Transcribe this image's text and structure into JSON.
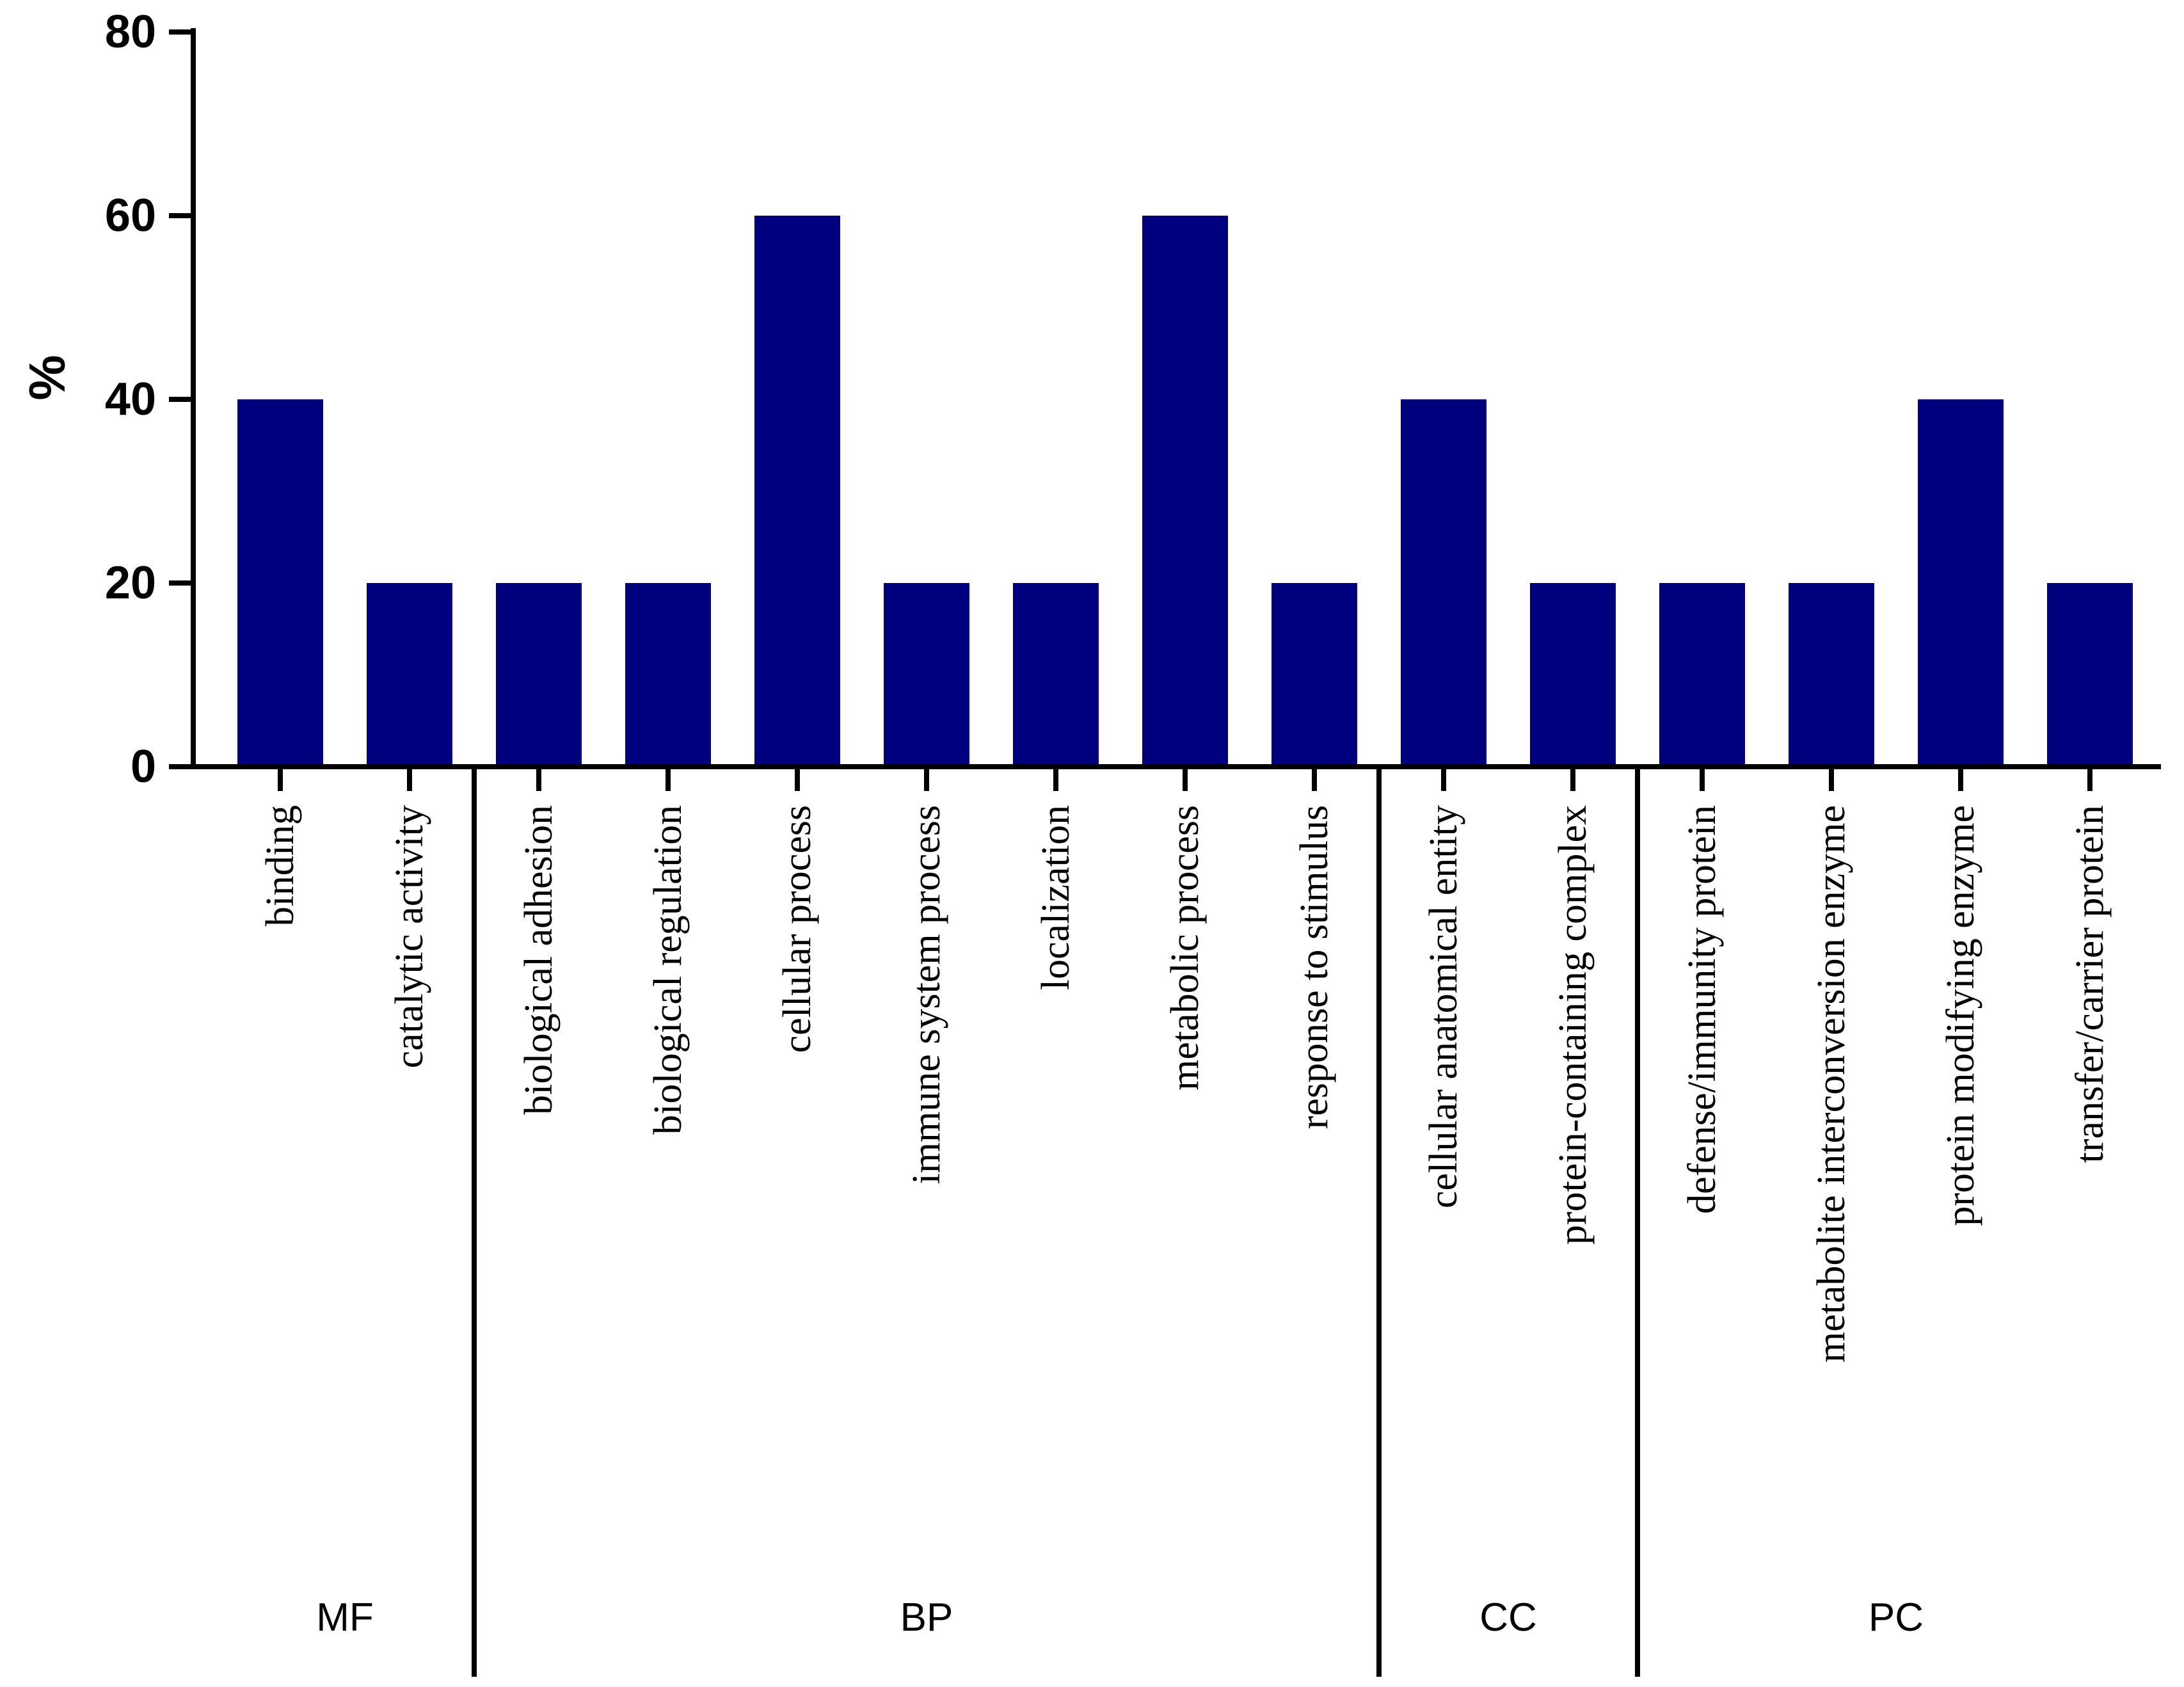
{
  "chart_data": {
    "type": "bar",
    "ylabel": "%",
    "xlabel": "",
    "ylim": [
      0,
      80
    ],
    "yticks": [
      "0",
      "20",
      "40",
      "60",
      "80"
    ],
    "grid": false,
    "categories": [
      "binding",
      "catalytic activity",
      "biological adhesion",
      "biological regulation",
      "cellular process",
      "immune system process",
      "localization",
      "metabolic process",
      "response to stimulus",
      "cellular anatomical entity",
      "protein-containing complex",
      "defense/immunity protein",
      "metabolite interconversion enzyme",
      "protein modifying enzyme",
      "transfer/carrier protein"
    ],
    "values": [
      40,
      20,
      20,
      20,
      60,
      20,
      20,
      60,
      20,
      40,
      20,
      20,
      20,
      40,
      20
    ],
    "groups": [
      {
        "label": "MF",
        "start": 0,
        "end": 1
      },
      {
        "label": "BP",
        "start": 2,
        "end": 8
      },
      {
        "label": "CC",
        "start": 9,
        "end": 10
      },
      {
        "label": "PC",
        "start": 11,
        "end": 14
      }
    ],
    "bar_color": "#00007f"
  }
}
